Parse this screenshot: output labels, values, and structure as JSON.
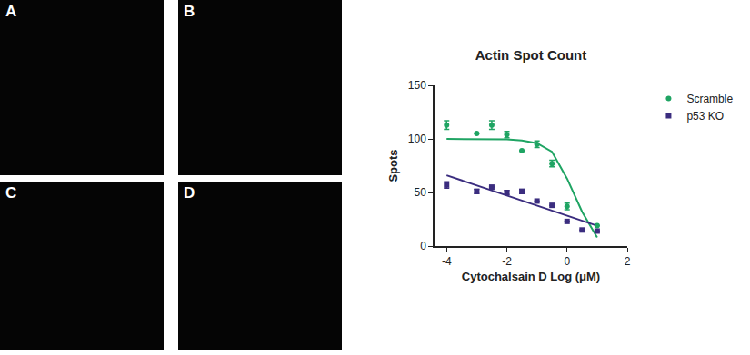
{
  "panels": {
    "labels": [
      "A",
      "B",
      "C",
      "D"
    ]
  },
  "chart_data": {
    "type": "scatter",
    "title": "Actin Spot Count",
    "x_label": "Cytochalsain D Log (μM)",
    "y_label": "Spots",
    "xlim": [
      -4.4,
      2
    ],
    "xticks": [
      -4,
      -2,
      0,
      2
    ],
    "ylim": [
      0,
      150
    ],
    "yticks": [
      0,
      50,
      100,
      150
    ],
    "grid": false,
    "legend": "right",
    "series": [
      {
        "name": "Scramble",
        "color": "#1fa463",
        "marker": "circle",
        "x": [
          -4,
          -3,
          -2.5,
          -2,
          -1.5,
          -1,
          -0.5,
          0,
          1
        ],
        "values": [
          113,
          105,
          113,
          104,
          89,
          95,
          77,
          37,
          19
        ],
        "errors": [
          4,
          0,
          4,
          3,
          0,
          3,
          3,
          3,
          0
        ],
        "fit_x": [
          -4,
          -3,
          -2,
          -1.5,
          -1,
          -0.5,
          0,
          0.5,
          1
        ],
        "fit_values": [
          100,
          100,
          99.5,
          98.5,
          96,
          88,
          63,
          32,
          8
        ]
      },
      {
        "name": "p53 KO",
        "color": "#3b2d7f",
        "marker": "square",
        "x": [
          -4,
          -3,
          -2.5,
          -2,
          -1.5,
          -1,
          -0.5,
          0,
          0.5,
          1
        ],
        "values": [
          57,
          51,
          55,
          50,
          51,
          42,
          38,
          23,
          15,
          14
        ],
        "errors": [
          3,
          2,
          0,
          2,
          2,
          0,
          0,
          0,
          0,
          0
        ],
        "fit_x": [
          -4,
          1
        ],
        "fit_values": [
          66,
          19
        ]
      }
    ]
  }
}
